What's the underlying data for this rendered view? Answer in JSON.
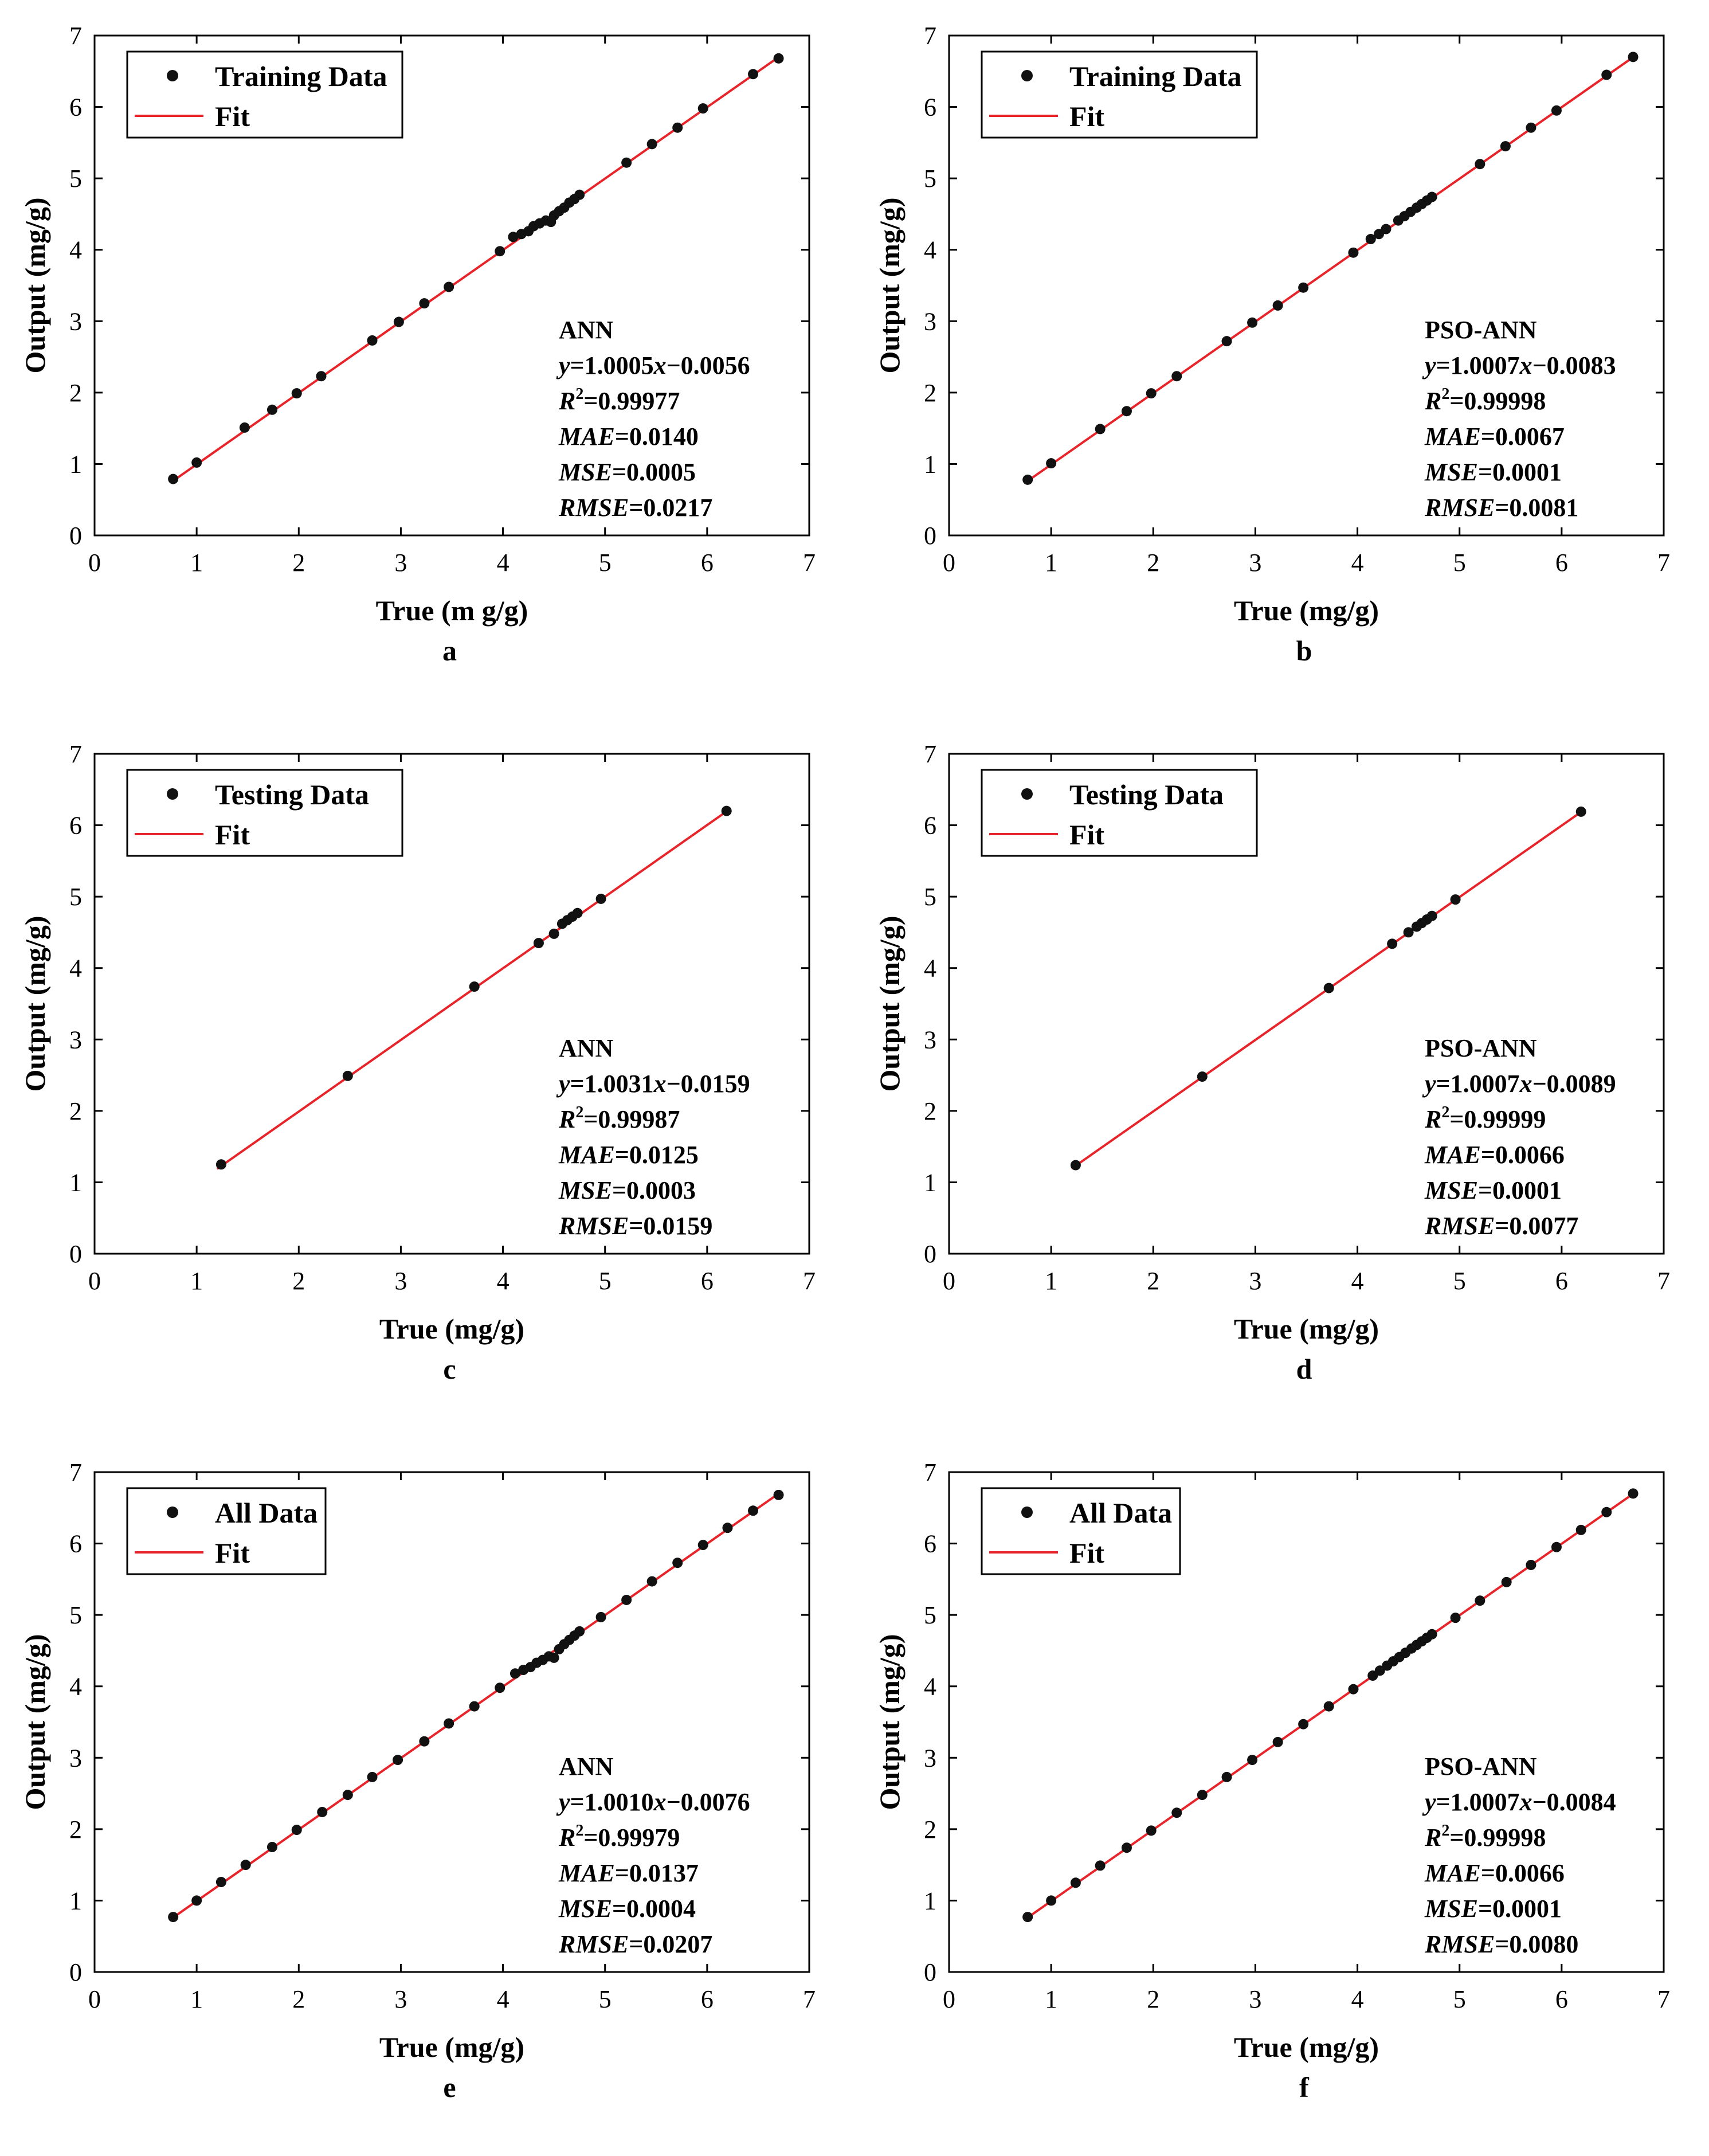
{
  "chart_data": [
    {
      "type": "scatter",
      "panel_label": "a",
      "xlabel": "True (m g/g)",
      "ylabel": "Output (mg/g)",
      "xlim": [
        0,
        7
      ],
      "ylim": [
        0,
        7
      ],
      "xticks": [
        "0",
        "1",
        "2",
        "3",
        "4",
        "5",
        "6",
        "7"
      ],
      "yticks": [
        "0",
        "1",
        "2",
        "3",
        "4",
        "5",
        "6",
        "7"
      ],
      "legend": {
        "data_label": "Training Data",
        "fit_label": "Fit",
        "position": "top-left"
      },
      "stats": {
        "model": "ANN",
        "equation": "y=1.0005x−0.0056",
        "r2": "R²=0.99977",
        "mae": "MAE=0.0140",
        "mse": "MSE=0.0005",
        "rmse": "RMSE=0.0217"
      },
      "fit": {
        "slope": 1.0005,
        "intercept": -0.0056,
        "x_range": [
          0.75,
          6.7
        ]
      },
      "points": [
        [
          0.77,
          0.79
        ],
        [
          1.0,
          1.02
        ],
        [
          1.47,
          1.51
        ],
        [
          1.74,
          1.76
        ],
        [
          1.98,
          1.99
        ],
        [
          2.22,
          2.23
        ],
        [
          2.72,
          2.73
        ],
        [
          2.98,
          2.99
        ],
        [
          3.23,
          3.25
        ],
        [
          3.47,
          3.48
        ],
        [
          3.97,
          3.98
        ],
        [
          4.1,
          4.18
        ],
        [
          4.18,
          4.22
        ],
        [
          4.25,
          4.26
        ],
        [
          4.3,
          4.33
        ],
        [
          4.36,
          4.37
        ],
        [
          4.42,
          4.41
        ],
        [
          4.47,
          4.39
        ],
        [
          4.5,
          4.48
        ],
        [
          4.55,
          4.54
        ],
        [
          4.6,
          4.59
        ],
        [
          4.65,
          4.66
        ],
        [
          4.7,
          4.71
        ],
        [
          4.75,
          4.77
        ],
        [
          5.21,
          5.22
        ],
        [
          5.46,
          5.48
        ],
        [
          5.71,
          5.71
        ],
        [
          5.96,
          5.98
        ],
        [
          6.45,
          6.46
        ],
        [
          6.7,
          6.68
        ]
      ]
    },
    {
      "type": "scatter",
      "panel_label": "b",
      "xlabel": "True (mg/g)",
      "ylabel": "Output (mg/g)",
      "xlim": [
        0,
        7
      ],
      "ylim": [
        0,
        7
      ],
      "xticks": [
        "0",
        "1",
        "2",
        "3",
        "4",
        "5",
        "6",
        "7"
      ],
      "yticks": [
        "0",
        "1",
        "2",
        "3",
        "4",
        "5",
        "6",
        "7"
      ],
      "legend": {
        "data_label": "Training  Data",
        "fit_label": "Fit",
        "position": "top-left"
      },
      "stats": {
        "model": "PSO-ANN",
        "equation": "y=1.0007x−0.0083",
        "r2": "R²=0.99998",
        "mae": "MAE=0.0067",
        "mse": "MSE=0.0001",
        "rmse": "RMSE=0.0081"
      },
      "fit": {
        "slope": 1.0007,
        "intercept": -0.0083,
        "x_range": [
          0.75,
          6.7
        ]
      },
      "points": [
        [
          0.77,
          0.78
        ],
        [
          1.0,
          1.01
        ],
        [
          1.48,
          1.49
        ],
        [
          1.74,
          1.74
        ],
        [
          1.98,
          1.99
        ],
        [
          2.23,
          2.23
        ],
        [
          2.72,
          2.72
        ],
        [
          2.97,
          2.98
        ],
        [
          3.22,
          3.22
        ],
        [
          3.47,
          3.47
        ],
        [
          3.96,
          3.96
        ],
        [
          4.13,
          4.15
        ],
        [
          4.21,
          4.22
        ],
        [
          4.28,
          4.29
        ],
        [
          4.4,
          4.41
        ],
        [
          4.46,
          4.47
        ],
        [
          4.52,
          4.53
        ],
        [
          4.58,
          4.59
        ],
        [
          4.63,
          4.64
        ],
        [
          4.68,
          4.69
        ],
        [
          4.73,
          4.74
        ],
        [
          5.2,
          5.2
        ],
        [
          5.45,
          5.45
        ],
        [
          5.7,
          5.71
        ],
        [
          5.95,
          5.95
        ],
        [
          6.44,
          6.45
        ],
        [
          6.7,
          6.7
        ]
      ]
    },
    {
      "type": "scatter",
      "panel_label": "c",
      "xlabel": "True (mg/g)",
      "ylabel": "Output (mg/g)",
      "xlim": [
        0,
        7
      ],
      "ylim": [
        0,
        7
      ],
      "xticks": [
        "0",
        "1",
        "2",
        "3",
        "4",
        "5",
        "6",
        "7"
      ],
      "yticks": [
        "0",
        "1",
        "2",
        "3",
        "4",
        "5",
        "6",
        "7"
      ],
      "legend": {
        "data_label": "Testing Data",
        "fit_label": "Fit",
        "position": "top-left"
      },
      "stats": {
        "model": "ANN",
        "equation": "y=1.0031x−0.0159",
        "r2": "R²=0.99987",
        "mae": "MAE=0.0125",
        "mse": "MSE=0.0003",
        "rmse": "RMSE=0.0159"
      },
      "fit": {
        "slope": 1.0031,
        "intercept": -0.0159,
        "x_range": [
          1.2,
          6.2
        ]
      },
      "points": [
        [
          1.24,
          1.25
        ],
        [
          2.48,
          2.49
        ],
        [
          3.72,
          3.74
        ],
        [
          4.35,
          4.35
        ],
        [
          4.5,
          4.48
        ],
        [
          4.58,
          4.62
        ],
        [
          4.63,
          4.67
        ],
        [
          4.68,
          4.72
        ],
        [
          4.73,
          4.77
        ],
        [
          4.96,
          4.97
        ],
        [
          6.19,
          6.2
        ]
      ]
    },
    {
      "type": "scatter",
      "panel_label": "d",
      "xlabel": "True (mg/g)",
      "ylabel": "Output (mg/g)",
      "xlim": [
        0,
        7
      ],
      "ylim": [
        0,
        7
      ],
      "xticks": [
        "0",
        "1",
        "2",
        "3",
        "4",
        "5",
        "6",
        "7"
      ],
      "yticks": [
        "0",
        "1",
        "2",
        "3",
        "4",
        "5",
        "6",
        "7"
      ],
      "legend": {
        "data_label": "Testing Data",
        "fit_label": "Fit",
        "position": "top-left"
      },
      "stats": {
        "model": "PSO-ANN",
        "equation": "y=1.0007x−0.0089",
        "r2": "R²=0.99999",
        "mae": "MAE=0.0066",
        "mse": "MSE=0.0001",
        "rmse": "RMSE=0.0077"
      },
      "fit": {
        "slope": 1.0007,
        "intercept": -0.0089,
        "x_range": [
          1.2,
          6.2
        ]
      },
      "points": [
        [
          1.24,
          1.24
        ],
        [
          2.48,
          2.48
        ],
        [
          3.72,
          3.72
        ],
        [
          4.34,
          4.34
        ],
        [
          4.5,
          4.5
        ],
        [
          4.58,
          4.58
        ],
        [
          4.63,
          4.63
        ],
        [
          4.68,
          4.68
        ],
        [
          4.73,
          4.73
        ],
        [
          4.96,
          4.96
        ],
        [
          6.19,
          6.19
        ]
      ]
    },
    {
      "type": "scatter",
      "panel_label": "e",
      "xlabel": "True (mg/g)",
      "ylabel": "Output (mg/g)",
      "xlim": [
        0,
        7
      ],
      "ylim": [
        0,
        7
      ],
      "xticks": [
        "0",
        "1",
        "2",
        "3",
        "4",
        "5",
        "6",
        "7"
      ],
      "yticks": [
        "0",
        "1",
        "2",
        "3",
        "4",
        "5",
        "6",
        "7"
      ],
      "legend": {
        "data_label": "All Data",
        "fit_label": "Fit",
        "position": "top-left"
      },
      "stats": {
        "model": "ANN",
        "equation": "y=1.0010x−0.0076",
        "r2": "R²=0.99979",
        "mae": "MAE=0.0137",
        "mse": "MSE=0.0004",
        "rmse": "RMSE=0.0207"
      },
      "fit": {
        "slope": 1.001,
        "intercept": -0.0076,
        "x_range": [
          0.75,
          6.7
        ]
      },
      "points": [
        [
          0.77,
          0.77
        ],
        [
          1.0,
          1.0
        ],
        [
          1.24,
          1.26
        ],
        [
          1.48,
          1.5
        ],
        [
          1.74,
          1.75
        ],
        [
          1.98,
          1.99
        ],
        [
          2.23,
          2.24
        ],
        [
          2.48,
          2.48
        ],
        [
          2.72,
          2.73
        ],
        [
          2.97,
          2.97
        ],
        [
          3.23,
          3.23
        ],
        [
          3.47,
          3.48
        ],
        [
          3.72,
          3.72
        ],
        [
          3.97,
          3.98
        ],
        [
          4.12,
          4.18
        ],
        [
          4.2,
          4.23
        ],
        [
          4.27,
          4.27
        ],
        [
          4.33,
          4.33
        ],
        [
          4.39,
          4.37
        ],
        [
          4.45,
          4.42
        ],
        [
          4.5,
          4.4
        ],
        [
          4.55,
          4.52
        ],
        [
          4.6,
          4.59
        ],
        [
          4.65,
          4.65
        ],
        [
          4.7,
          4.71
        ],
        [
          4.75,
          4.77
        ],
        [
          4.96,
          4.97
        ],
        [
          5.21,
          5.21
        ],
        [
          5.46,
          5.47
        ],
        [
          5.71,
          5.73
        ],
        [
          5.96,
          5.98
        ],
        [
          6.2,
          6.22
        ],
        [
          6.45,
          6.46
        ],
        [
          6.7,
          6.68
        ]
      ]
    },
    {
      "type": "scatter",
      "panel_label": "f",
      "xlabel": "True (mg/g)",
      "ylabel": "Output (mg/g)",
      "xlim": [
        0,
        7
      ],
      "ylim": [
        0,
        7
      ],
      "xticks": [
        "0",
        "1",
        "2",
        "3",
        "4",
        "5",
        "6",
        "7"
      ],
      "yticks": [
        "0",
        "1",
        "2",
        "3",
        "4",
        "5",
        "6",
        "7"
      ],
      "legend": {
        "data_label": "All Data",
        "fit_label": "Fit",
        "position": "top-left"
      },
      "stats": {
        "model": "PSO-ANN",
        "equation": "y=1.0007x−0.0084",
        "r2": "R²=0.99998",
        "mae": "MAE=0.0066",
        "mse": "MSE=0.0001",
        "rmse": "RMSE=0.0080"
      },
      "fit": {
        "slope": 1.0007,
        "intercept": -0.0084,
        "x_range": [
          0.75,
          6.7
        ]
      },
      "points": [
        [
          0.77,
          0.77
        ],
        [
          1.0,
          1.0
        ],
        [
          1.24,
          1.25
        ],
        [
          1.48,
          1.49
        ],
        [
          1.74,
          1.74
        ],
        [
          1.98,
          1.98
        ],
        [
          2.23,
          2.23
        ],
        [
          2.48,
          2.48
        ],
        [
          2.72,
          2.73
        ],
        [
          2.97,
          2.97
        ],
        [
          3.22,
          3.22
        ],
        [
          3.47,
          3.47
        ],
        [
          3.72,
          3.72
        ],
        [
          3.96,
          3.96
        ],
        [
          4.15,
          4.15
        ],
        [
          4.22,
          4.22
        ],
        [
          4.29,
          4.29
        ],
        [
          4.35,
          4.35
        ],
        [
          4.41,
          4.41
        ],
        [
          4.47,
          4.47
        ],
        [
          4.53,
          4.53
        ],
        [
          4.58,
          4.58
        ],
        [
          4.63,
          4.63
        ],
        [
          4.68,
          4.68
        ],
        [
          4.73,
          4.73
        ],
        [
          4.96,
          4.96
        ],
        [
          5.2,
          5.2
        ],
        [
          5.46,
          5.46
        ],
        [
          5.7,
          5.7
        ],
        [
          5.95,
          5.95
        ],
        [
          6.19,
          6.19
        ],
        [
          6.44,
          6.44
        ],
        [
          6.7,
          6.7
        ]
      ]
    }
  ]
}
